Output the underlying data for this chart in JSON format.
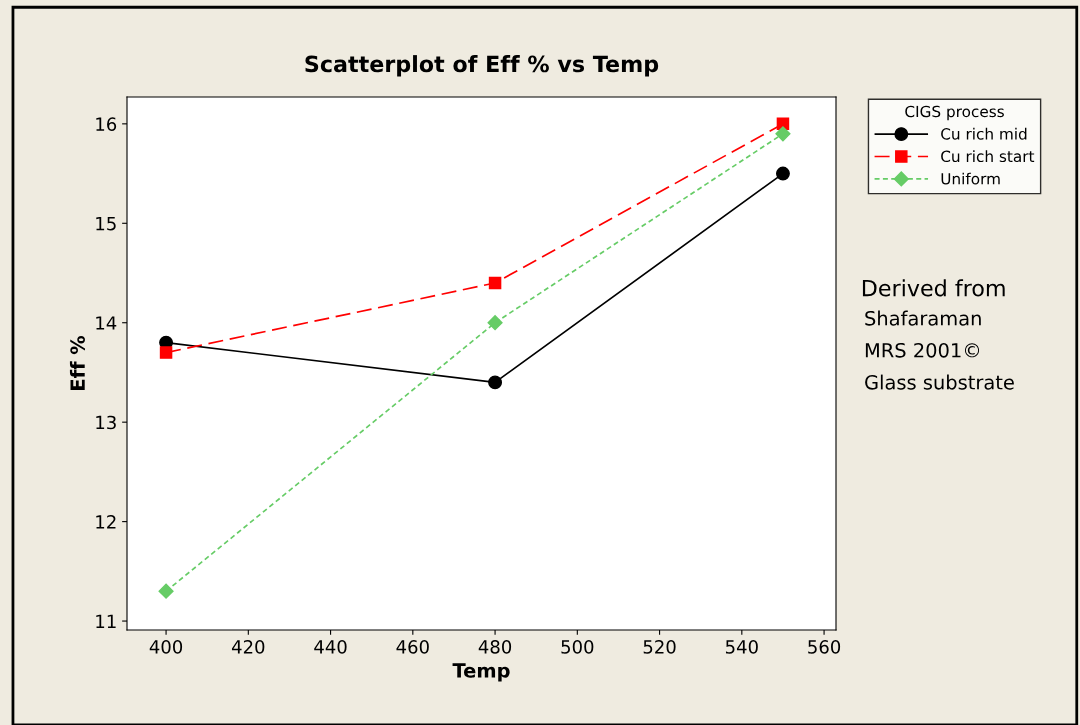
{
  "chart_data": {
    "type": "line",
    "title": "Scatterplot of Eff % vs Temp",
    "xlabel": "Temp",
    "ylabel": "Eff %",
    "x": [
      400,
      480,
      550
    ],
    "series": [
      {
        "name": "Cu rich mid",
        "color": "#000000",
        "values": [
          13.8,
          13.4,
          15.5
        ],
        "marker": "circle",
        "line_style": "solid"
      },
      {
        "name": "Cu rich start",
        "color": "#ff0000",
        "values": [
          13.7,
          14.4,
          16.0
        ],
        "marker": "square",
        "line_style": "dashed"
      },
      {
        "name": "Uniform",
        "color": "#66cc66",
        "values": [
          11.3,
          14.0,
          15.9
        ],
        "marker": "diamond",
        "line_style": "dotted"
      }
    ],
    "legend_title": "CIGS process",
    "legend": "right",
    "xlim": [
      390.5,
      562.9
    ],
    "xticks": [
      400,
      420,
      440,
      460,
      480,
      500,
      520,
      540,
      560
    ],
    "ylim": [
      10.91,
      16.27
    ],
    "yticks": [
      11,
      12,
      13,
      14,
      15,
      16
    ],
    "grid": false,
    "annotations": [
      "Derived from",
      "Shafaraman",
      "MRS 2001©",
      "Glass substrate"
    ]
  }
}
